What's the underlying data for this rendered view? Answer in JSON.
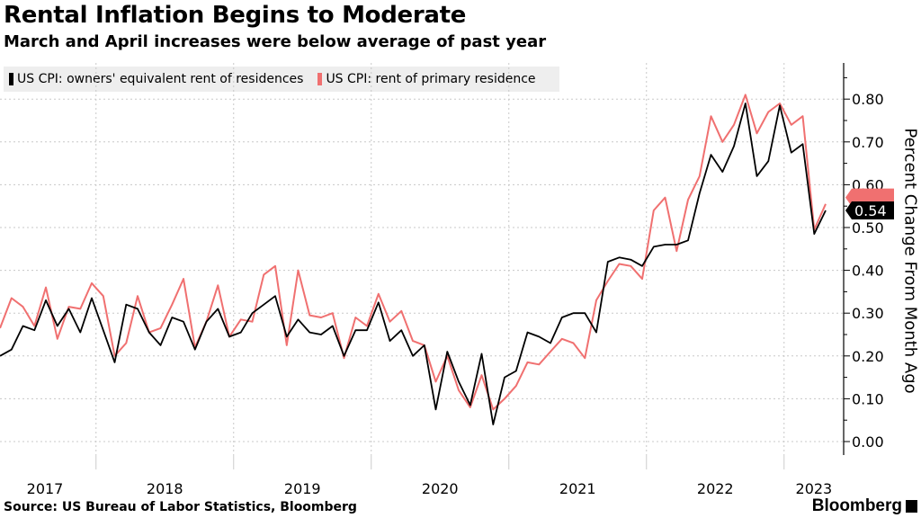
{
  "title": "Rental Inflation Begins to Moderate",
  "subtitle": "March and April increases were below average of past year",
  "source": "Source: US Bureau of Labor Statistics, Bloomberg",
  "logo": "Bloomberg",
  "chart_data": {
    "type": "line",
    "ylabel": "Percent Change From Month Ago",
    "ylim": [
      -0.04,
      0.88
    ],
    "yticks": [
      "0.00",
      "0.10",
      "0.20",
      "0.30",
      "0.40",
      "0.50",
      "0.60",
      "0.70",
      "0.80"
    ],
    "xticks": [
      "2017",
      "2018",
      "2019",
      "2020",
      "2021",
      "2022",
      "2023"
    ],
    "grid": true,
    "legend_position": "top-left",
    "last_value_label": "0.54",
    "x": [
      "2017-04",
      "2017-05",
      "2017-06",
      "2017-07",
      "2017-08",
      "2017-09",
      "2017-10",
      "2017-11",
      "2017-12",
      "2018-01",
      "2018-02",
      "2018-03",
      "2018-04",
      "2018-05",
      "2018-06",
      "2018-07",
      "2018-08",
      "2018-09",
      "2018-10",
      "2018-11",
      "2018-12",
      "2019-01",
      "2019-02",
      "2019-03",
      "2019-04",
      "2019-05",
      "2019-06",
      "2019-07",
      "2019-08",
      "2019-09",
      "2019-10",
      "2019-11",
      "2019-12",
      "2020-01",
      "2020-02",
      "2020-03",
      "2020-04",
      "2020-05",
      "2020-06",
      "2020-07",
      "2020-08",
      "2020-09",
      "2020-10",
      "2020-11",
      "2020-12",
      "2021-01",
      "2021-02",
      "2021-03",
      "2021-04",
      "2021-05",
      "2021-06",
      "2021-07",
      "2021-08",
      "2021-09",
      "2021-10",
      "2021-11",
      "2021-12",
      "2022-01",
      "2022-02",
      "2022-03",
      "2022-04",
      "2022-05",
      "2022-06",
      "2022-07",
      "2022-08",
      "2022-09",
      "2022-10",
      "2022-11",
      "2022-12",
      "2023-01",
      "2023-02",
      "2023-03",
      "2023-04"
    ],
    "series": [
      {
        "name": "US CPI: owners' equivalent rent of residences",
        "color": "#000000",
        "values": [
          0.2,
          0.215,
          0.27,
          0.26,
          0.33,
          0.27,
          0.31,
          0.255,
          0.335,
          0.26,
          0.185,
          0.32,
          0.31,
          0.255,
          0.225,
          0.29,
          0.28,
          0.215,
          0.28,
          0.31,
          0.245,
          0.255,
          0.3,
          0.32,
          0.34,
          0.245,
          0.285,
          0.255,
          0.25,
          0.27,
          0.2,
          0.26,
          0.26,
          0.325,
          0.235,
          0.26,
          0.2,
          0.225,
          0.075,
          0.21,
          0.14,
          0.085,
          0.205,
          0.04,
          0.15,
          0.165,
          0.255,
          0.245,
          0.23,
          0.29,
          0.3,
          0.3,
          0.255,
          0.42,
          0.43,
          0.425,
          0.41,
          0.455,
          0.46,
          0.46,
          0.47,
          0.58,
          0.67,
          0.63,
          0.69,
          0.79,
          0.62,
          0.655,
          0.785,
          0.675,
          0.695,
          0.485,
          0.54
        ]
      },
      {
        "name": "US CPI: rent of primary residence",
        "color": "#f07070",
        "values": [
          0.265,
          0.335,
          0.315,
          0.27,
          0.36,
          0.24,
          0.315,
          0.31,
          0.37,
          0.34,
          0.2,
          0.23,
          0.34,
          0.255,
          0.265,
          0.32,
          0.38,
          0.22,
          0.28,
          0.365,
          0.245,
          0.285,
          0.28,
          0.39,
          0.41,
          0.225,
          0.4,
          0.295,
          0.29,
          0.3,
          0.195,
          0.29,
          0.27,
          0.345,
          0.28,
          0.305,
          0.235,
          0.225,
          0.14,
          0.2,
          0.12,
          0.08,
          0.155,
          0.075,
          0.1,
          0.13,
          0.185,
          0.18,
          0.21,
          0.24,
          0.23,
          0.195,
          0.33,
          0.375,
          0.415,
          0.41,
          0.38,
          0.54,
          0.57,
          0.445,
          0.565,
          0.62,
          0.76,
          0.7,
          0.74,
          0.81,
          0.72,
          0.77,
          0.79,
          0.74,
          0.76,
          0.495,
          0.555
        ]
      }
    ]
  }
}
